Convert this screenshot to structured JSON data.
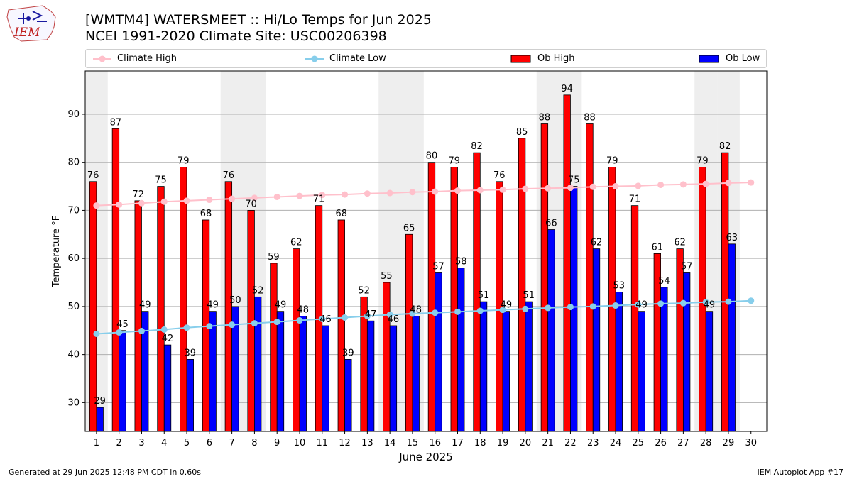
{
  "header": {
    "title_line1": "[WMTM4] WATERSMEET :: Hi/Lo Temps for Jun 2025",
    "title_line2": "NCEI 1991-2020 Climate Site: USC00206398",
    "logo_text": "IEM"
  },
  "legend": {
    "climate_high": "Climate High",
    "climate_low": "Climate Low",
    "ob_high": "Ob High",
    "ob_low": "Ob Low"
  },
  "footer": {
    "generated": "Generated at 29 Jun 2025 12:48 PM CDT in 0.60s",
    "app": "IEM Autoplot App #17"
  },
  "colors": {
    "ob_high": "#ff0000",
    "ob_low": "#0000ff",
    "climate_high": "#ffc0cb",
    "climate_low": "#87ceeb",
    "weekend_shade": "#eeeeee",
    "grid": "#b0b0b0"
  },
  "chart_data": {
    "type": "bar",
    "title": "[WMTM4] WATERSMEET :: Hi/Lo Temps for Jun 2025",
    "subtitle": "NCEI 1991-2020 Climate Site: USC00206398",
    "xlabel": "June 2025",
    "ylabel": "Temperature °F",
    "ylim": [
      24,
      99
    ],
    "yticks": [
      30,
      40,
      50,
      60,
      70,
      80,
      90
    ],
    "grid": true,
    "legend_position": "top",
    "x": [
      1,
      2,
      3,
      4,
      5,
      6,
      7,
      8,
      9,
      10,
      11,
      12,
      13,
      14,
      15,
      16,
      17,
      18,
      19,
      20,
      21,
      22,
      23,
      24,
      25,
      26,
      27,
      28,
      29,
      30
    ],
    "shaded_days": [
      1,
      7,
      8,
      14,
      15,
      21,
      22,
      28,
      29
    ],
    "series": [
      {
        "name": "Ob High",
        "kind": "bar",
        "values": [
          76,
          87,
          72,
          75,
          79,
          68,
          76,
          70,
          59,
          62,
          71,
          68,
          52,
          55,
          65,
          80,
          79,
          82,
          76,
          85,
          88,
          94,
          88,
          79,
          71,
          61,
          62,
          79,
          82,
          null
        ]
      },
      {
        "name": "Ob Low",
        "kind": "bar",
        "values": [
          29,
          45,
          49,
          42,
          39,
          49,
          50,
          52,
          49,
          48,
          46,
          39,
          47,
          46,
          48,
          57,
          58,
          51,
          49,
          51,
          66,
          75,
          62,
          53,
          49,
          54,
          57,
          49,
          63,
          null
        ]
      },
      {
        "name": "Climate High",
        "kind": "line",
        "values": [
          71.0,
          71.2,
          71.5,
          71.8,
          72.0,
          72.2,
          72.4,
          72.6,
          72.8,
          73.0,
          73.2,
          73.3,
          73.5,
          73.6,
          73.8,
          73.9,
          74.1,
          74.2,
          74.3,
          74.5,
          74.6,
          74.7,
          74.9,
          75.0,
          75.1,
          75.3,
          75.4,
          75.5,
          75.7,
          75.8
        ]
      },
      {
        "name": "Climate Low",
        "kind": "line",
        "values": [
          44.3,
          44.6,
          44.9,
          45.2,
          45.6,
          45.9,
          46.2,
          46.5,
          46.8,
          47.1,
          47.4,
          47.7,
          48.0,
          48.3,
          48.5,
          48.7,
          48.9,
          49.1,
          49.3,
          49.5,
          49.7,
          49.9,
          50.0,
          50.2,
          50.4,
          50.6,
          50.7,
          50.9,
          51.0,
          51.2
        ]
      }
    ]
  }
}
